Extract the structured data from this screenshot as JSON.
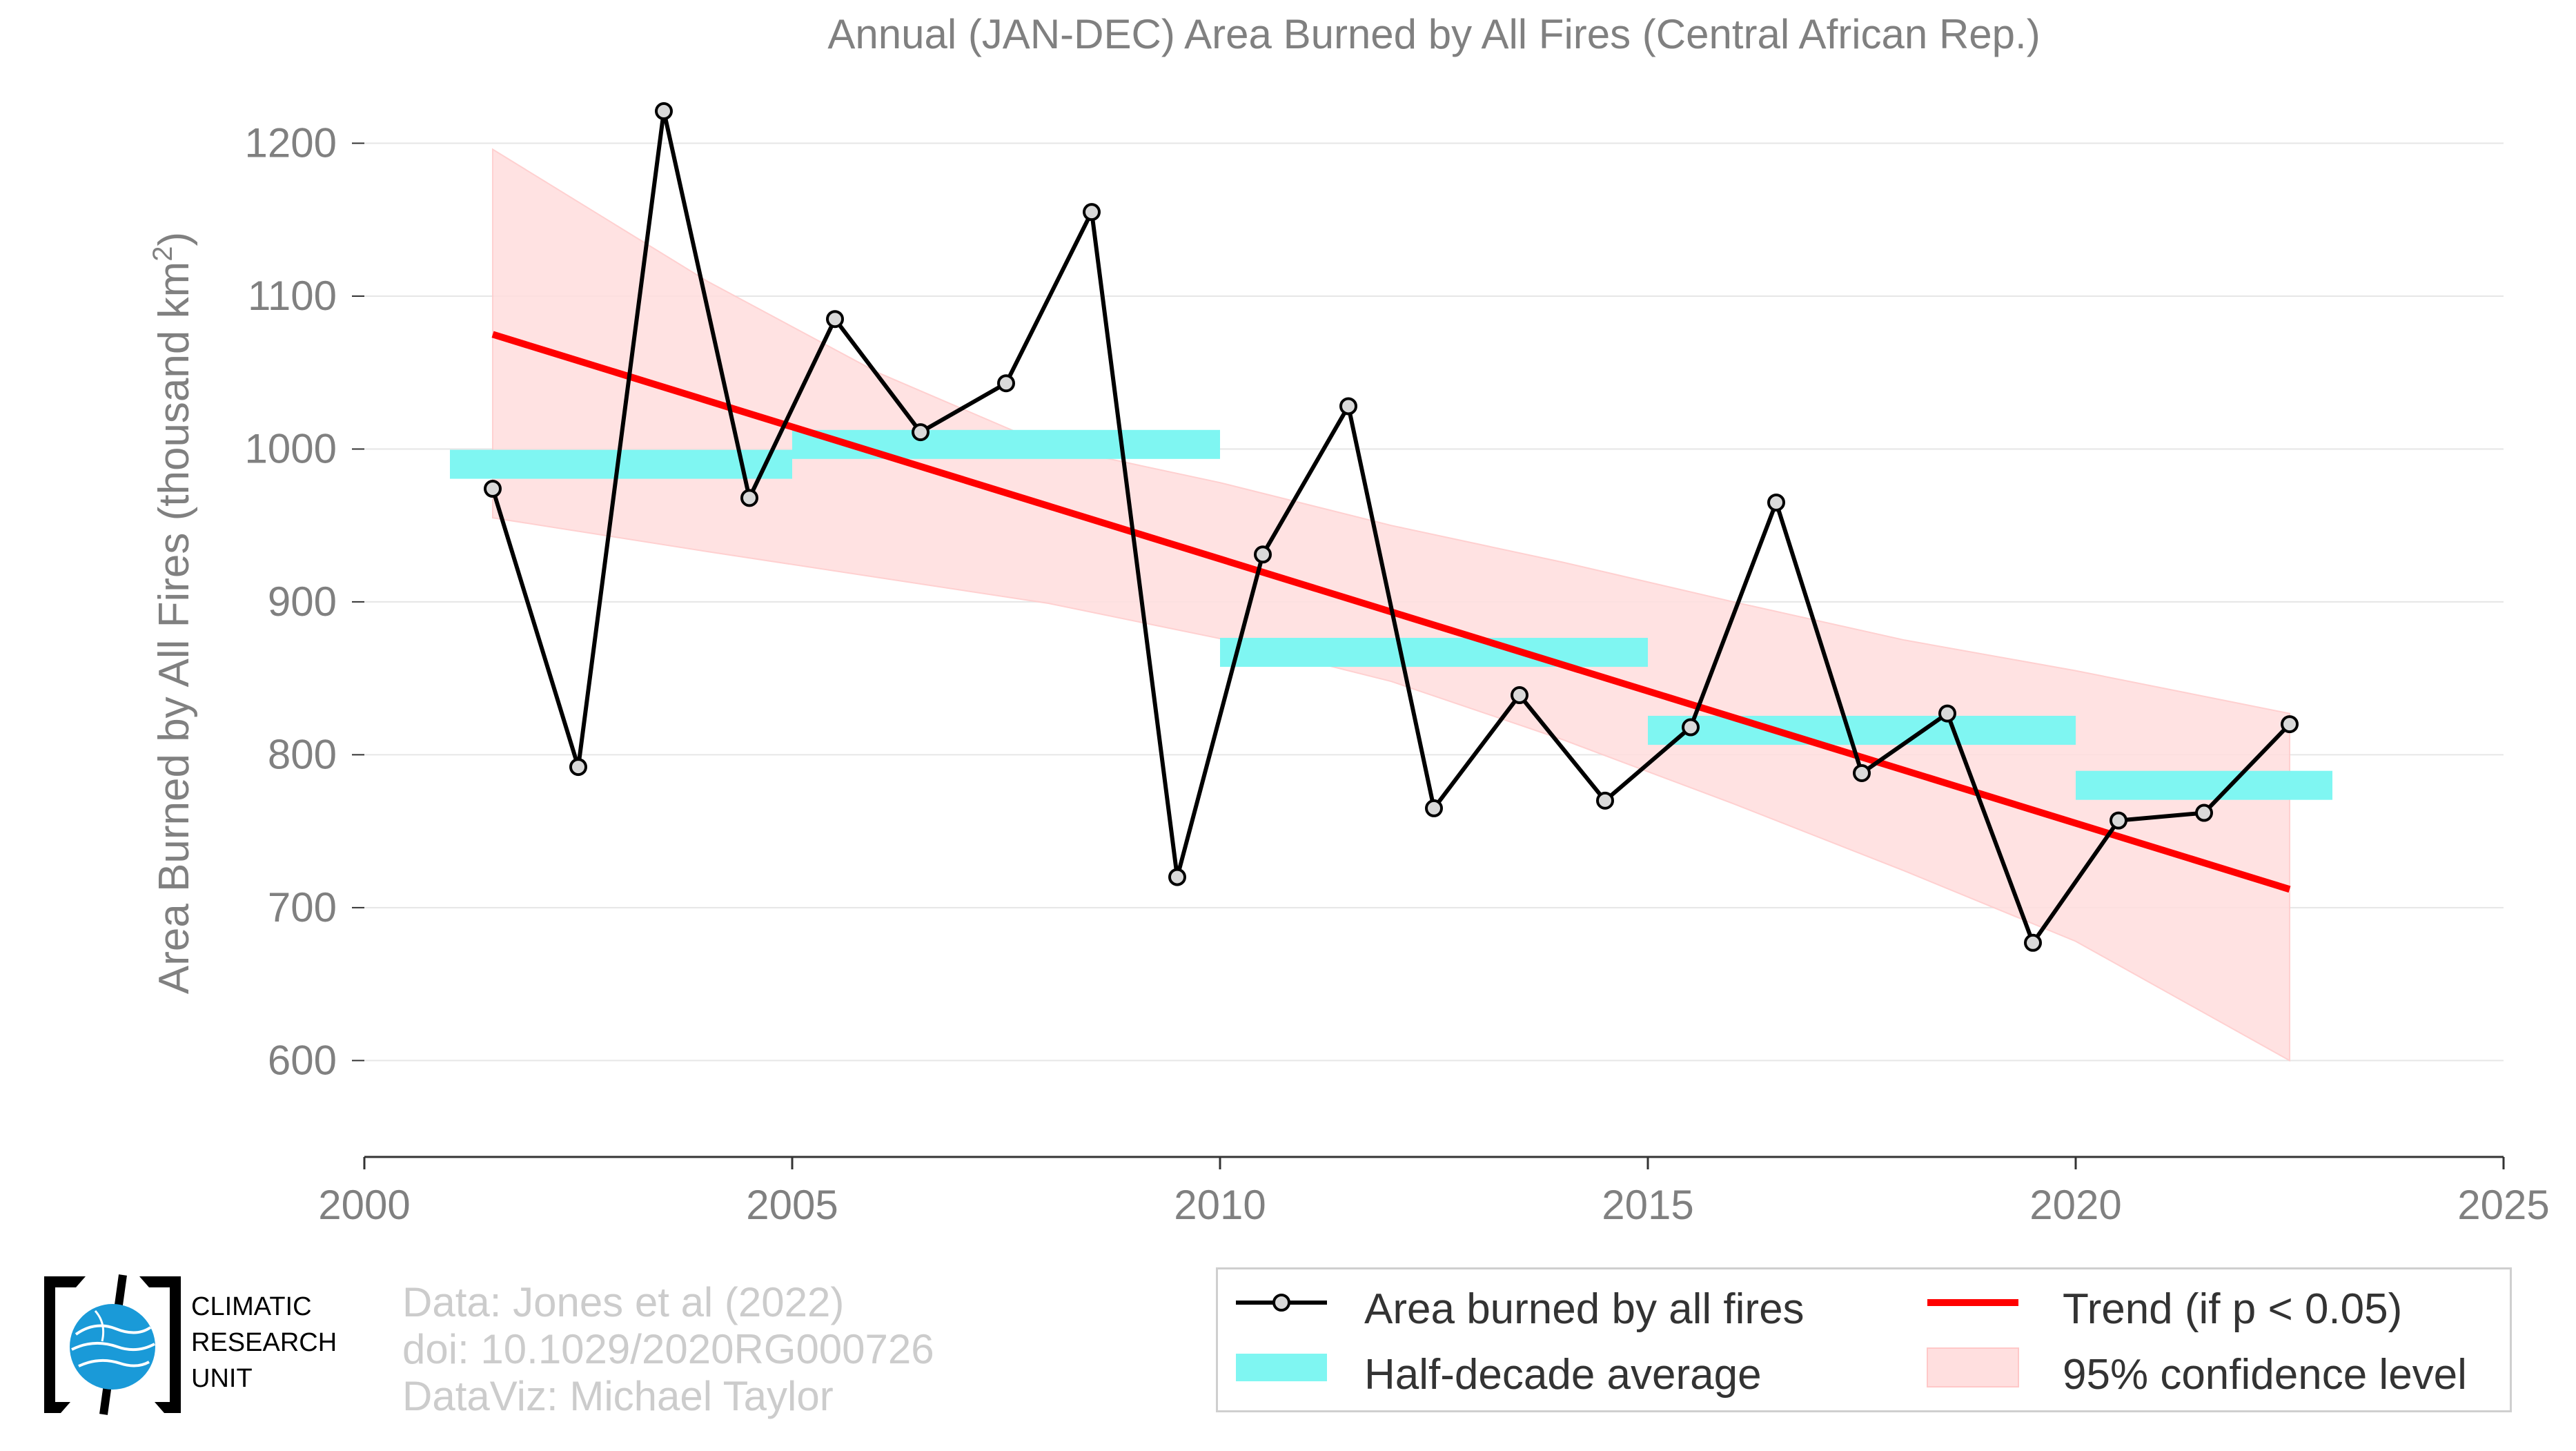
{
  "chart_data": {
    "type": "line",
    "title": "Annual (JAN-DEC) Area Burned by All Fires (Central African Rep.)",
    "ylabel": "Area Burned by All Fires (thousand km",
    "ylabel_sup": "2",
    "ylabel_end": ")",
    "xlabel": "",
    "xlim": [
      2000,
      2025
    ],
    "ylim": [
      555,
      1235
    ],
    "x_ticks": [
      2000,
      2005,
      2010,
      2015,
      2020,
      2025
    ],
    "y_ticks": [
      600,
      700,
      800,
      900,
      1000,
      1100,
      1200
    ],
    "grid": "horizontal",
    "legend_position": "bottom-right",
    "series": [
      {
        "name": "Area burned by all fires",
        "color": "#000000",
        "marker_fill": "#d9d9d9",
        "x": [
          2001.5,
          2002.5,
          2003.5,
          2004.5,
          2005.5,
          2006.5,
          2007.5,
          2008.5,
          2009.5,
          2010.5,
          2011.5,
          2012.5,
          2013.5,
          2014.5,
          2015.5,
          2016.5,
          2017.5,
          2018.5,
          2019.5,
          2020.5,
          2021.5,
          2022.5
        ],
        "y": [
          974,
          792,
          1221,
          968,
          1085,
          1011,
          1043,
          1155,
          720,
          931,
          1028,
          765,
          839,
          770,
          818,
          965,
          788,
          827,
          677,
          757,
          762,
          820
        ]
      },
      {
        "name": "Half-decade average",
        "color": "#7ff6f2",
        "segments": [
          {
            "x0": 2001,
            "x1": 2005,
            "y": 990
          },
          {
            "x0": 2005,
            "x1": 2010,
            "y": 1003
          },
          {
            "x0": 2010,
            "x1": 2015,
            "y": 867
          },
          {
            "x0": 2015,
            "x1": 2020,
            "y": 816
          },
          {
            "x0": 2020,
            "x1": 2023,
            "y": 780
          }
        ]
      },
      {
        "name": "Trend (if p < 0.05)",
        "color": "#ff0000",
        "x": [
          2001.5,
          2022.5
        ],
        "y": [
          1075,
          712
        ]
      },
      {
        "name": "95% confidence level",
        "color": "#ffdfdf",
        "x": [
          2001.5,
          2004,
          2006,
          2008,
          2010,
          2012,
          2014,
          2016,
          2018,
          2020,
          2022.5
        ],
        "upper": [
          1196,
          1110,
          1050,
          1002,
          978,
          950,
          926,
          900,
          875,
          855,
          827
        ],
        "lower": [
          955,
          933,
          916,
          899,
          876,
          848,
          810,
          768,
          724,
          678,
          600
        ]
      }
    ]
  },
  "credits": {
    "line1": "Data: Jones et al (2022)",
    "line2": "doi: 10.1029/2020RG000726",
    "line3": "DataViz: Michael Taylor"
  },
  "logo": {
    "line1": "CLIMATIC",
    "line2": "RESEARCH",
    "line3": "UNIT",
    "globe_color": "#1a9ad8"
  },
  "legend": {
    "item1": "Area burned by all fires",
    "item2": "Trend (if p < 0.05)",
    "item3": "Half-decade average",
    "item4": "95% confidence level"
  }
}
